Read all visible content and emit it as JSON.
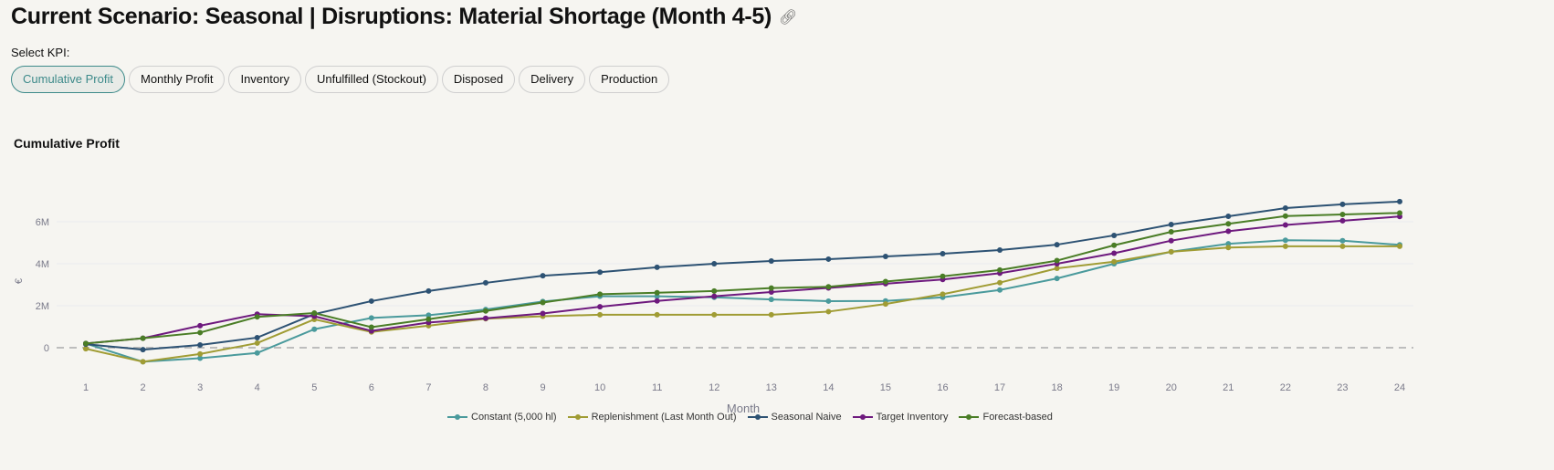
{
  "header": {
    "title": "Current Scenario: Seasonal | Disruptions: Material Shortage (Month 4-5)",
    "link_icon": "link-icon"
  },
  "kpi": {
    "label": "Select KPI:",
    "options": [
      "Cumulative Profit",
      "Monthly Profit",
      "Inventory",
      "Unfulfilled (Stockout)",
      "Disposed",
      "Delivery",
      "Production"
    ],
    "selected": "Cumulative Profit"
  },
  "chart_data": {
    "type": "line",
    "title": "Cumulative Profit",
    "xlabel": "Month",
    "ylabel": "€",
    "x": [
      1,
      2,
      3,
      4,
      5,
      6,
      7,
      8,
      9,
      10,
      11,
      12,
      13,
      14,
      15,
      16,
      17,
      18,
      19,
      20,
      21,
      22,
      23,
      24
    ],
    "yticks": [
      "0",
      "2M",
      "4M",
      "6M"
    ],
    "ylim": [
      -1.1,
      7.5
    ],
    "grid": true,
    "zero_line": "dashed",
    "legend_position": "bottom",
    "series": [
      {
        "name": "Constant (5,000 hl)",
        "color": "#4a9a9c",
        "values": [
          0.2,
          -0.67,
          -0.5,
          -0.25,
          0.88,
          1.42,
          1.55,
          1.82,
          2.2,
          2.45,
          2.45,
          2.4,
          2.3,
          2.22,
          2.23,
          2.4,
          2.75,
          3.3,
          4.0,
          4.57,
          4.95,
          5.12,
          5.1,
          4.9
        ]
      },
      {
        "name": "Replenishment (Last Month Out)",
        "color": "#a09c34",
        "values": [
          -0.05,
          -0.67,
          -0.3,
          0.22,
          1.35,
          0.75,
          1.05,
          1.38,
          1.5,
          1.57,
          1.57,
          1.57,
          1.57,
          1.72,
          2.08,
          2.55,
          3.1,
          3.78,
          4.1,
          4.57,
          4.77,
          4.83,
          4.83,
          4.83
        ]
      },
      {
        "name": "Seasonal Naive",
        "color": "#2d5273",
        "values": [
          0.17,
          -0.09,
          0.13,
          0.48,
          1.6,
          2.22,
          2.7,
          3.09,
          3.43,
          3.6,
          3.83,
          4.0,
          4.13,
          4.22,
          4.35,
          4.48,
          4.65,
          4.91,
          5.35,
          5.87,
          6.26,
          6.65,
          6.83,
          6.96
        ]
      },
      {
        "name": "Target Inventory",
        "color": "#6e1a7e",
        "values": [
          0.2,
          0.45,
          1.05,
          1.6,
          1.5,
          0.8,
          1.2,
          1.4,
          1.63,
          1.95,
          2.23,
          2.45,
          2.65,
          2.85,
          3.05,
          3.25,
          3.55,
          4.0,
          4.5,
          5.1,
          5.55,
          5.85,
          6.05,
          6.25
        ]
      },
      {
        "name": "Forecast-based",
        "color": "#4a7d26",
        "values": [
          0.2,
          0.45,
          0.72,
          1.47,
          1.65,
          0.98,
          1.36,
          1.75,
          2.15,
          2.55,
          2.62,
          2.7,
          2.84,
          2.9,
          3.15,
          3.4,
          3.7,
          4.15,
          4.88,
          5.52,
          5.9,
          6.27,
          6.35,
          6.42
        ]
      }
    ]
  }
}
